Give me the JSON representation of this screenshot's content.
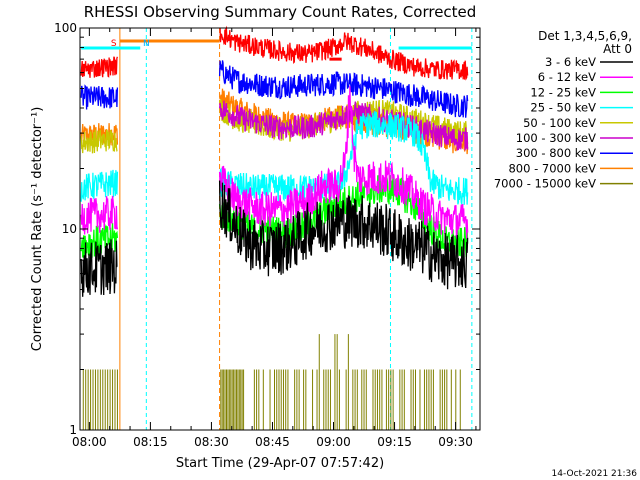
{
  "chart_data": {
    "type": "line",
    "title": "RHESSI Observing Summary Count Rates, Corrected",
    "xlabel": "Start Time (29-Apr-07 07:57:42)",
    "ylabel": "Corrected Count Rate (s⁻¹ detector⁻¹)",
    "yscale": "log",
    "ylim": [
      1,
      100
    ],
    "xlim_minutes": [
      -2.3,
      96
    ],
    "x_ticks": [
      {
        "minutes": 0,
        "label": "08:00"
      },
      {
        "minutes": 15,
        "label": "08:15"
      },
      {
        "minutes": 30,
        "label": "08:30"
      },
      {
        "minutes": 45,
        "label": "08:45"
      },
      {
        "minutes": 60,
        "label": "09:00"
      },
      {
        "minutes": 75,
        "label": "09:15"
      },
      {
        "minutes": 90,
        "label": "09:30"
      }
    ],
    "y_ticks": [
      {
        "value": 1,
        "label": "1"
      },
      {
        "value": 10,
        "label": "10"
      },
      {
        "value": 100,
        "label": "100"
      }
    ],
    "legend_header": [
      "Det 1,3,4,5,6,9,",
      "Att 0"
    ],
    "legend_position": "right",
    "series": [
      {
        "name": "3 - 6 keV",
        "color": "#000000",
        "noise": 0.14,
        "segments": [
          [
            [
              -2,
              6.3
            ],
            [
              7,
              6.5
            ]
          ],
          [
            [
              32,
              14
            ],
            [
              34,
              12
            ],
            [
              38,
              9
            ],
            [
              42,
              8
            ],
            [
              46,
              8
            ],
            [
              50,
              8.5
            ],
            [
              54,
              10
            ],
            [
              58,
              10.5
            ],
            [
              62,
              11
            ],
            [
              66,
              11
            ],
            [
              70,
              10.5
            ],
            [
              74,
              9.5
            ],
            [
              78,
              8.5
            ],
            [
              82,
              8
            ],
            [
              86,
              7
            ],
            [
              90,
              6.8
            ],
            [
              93,
              6.8
            ]
          ]
        ]
      },
      {
        "name": "6 - 12 keV",
        "color": "#ff00ff",
        "noise": 0.09,
        "segments": [
          [
            [
              -2,
              11.5
            ],
            [
              7,
              12
            ]
          ],
          [
            [
              32,
              18
            ],
            [
              36,
              14
            ],
            [
              42,
              12.5
            ],
            [
              48,
              12.5
            ],
            [
              54,
              14
            ],
            [
              57,
              16
            ],
            [
              59,
              16.5
            ],
            [
              61,
              16
            ],
            [
              63,
              22
            ],
            [
              64,
              50
            ],
            [
              65,
              24
            ],
            [
              66,
              18
            ],
            [
              70,
              18
            ],
            [
              74,
              18
            ],
            [
              78,
              16
            ],
            [
              82,
              13
            ],
            [
              86,
              11.5
            ],
            [
              90,
              11
            ],
            [
              93,
              11
            ]
          ]
        ]
      },
      {
        "name": "12 - 25 keV",
        "color": "#00ff00",
        "noise": 0.08,
        "segments": [
          [
            [
              -2,
              8.5
            ],
            [
              7,
              9
            ]
          ],
          [
            [
              32,
              12
            ],
            [
              36,
              11
            ],
            [
              40,
              10
            ],
            [
              44,
              10
            ],
            [
              48,
              9.5
            ],
            [
              52,
              10
            ],
            [
              56,
              11.5
            ],
            [
              60,
              13
            ],
            [
              64,
              14
            ],
            [
              68,
              15
            ],
            [
              72,
              16
            ],
            [
              76,
              15.5
            ],
            [
              80,
              13
            ],
            [
              84,
              10
            ],
            [
              88,
              8.5
            ],
            [
              93,
              8.5
            ]
          ]
        ]
      },
      {
        "name": "25 - 50 keV",
        "color": "#00ffff",
        "noise": 0.07,
        "segments": [
          [
            [
              -2,
              16
            ],
            [
              7,
              17
            ]
          ],
          [
            [
              32,
              17
            ],
            [
              40,
              16
            ],
            [
              48,
              16
            ],
            [
              56,
              16
            ],
            [
              62,
              16.5
            ],
            [
              64,
              22
            ],
            [
              66,
              32
            ],
            [
              68,
              33
            ],
            [
              72,
              33
            ],
            [
              76,
              32
            ],
            [
              80,
              30
            ],
            [
              82,
              25
            ],
            [
              84,
              17
            ],
            [
              88,
              15.5
            ],
            [
              93,
              15.5
            ]
          ]
        ]
      },
      {
        "name": "50 - 100 keV",
        "color": "#c8c800",
        "noise": 0.06,
        "segments": [
          [
            [
              -2,
              27
            ],
            [
              7,
              28
            ]
          ],
          [
            [
              32,
              40
            ],
            [
              36,
              35
            ],
            [
              44,
              32
            ],
            [
              50,
              31
            ],
            [
              56,
              33
            ],
            [
              62,
              36
            ],
            [
              66,
              38
            ],
            [
              70,
              39
            ],
            [
              74,
              38
            ],
            [
              78,
              36
            ],
            [
              82,
              34
            ],
            [
              86,
              32
            ],
            [
              90,
              30.5
            ],
            [
              93,
              30
            ]
          ]
        ]
      },
      {
        "name": "100 - 300 keV",
        "color": "#cc00cc",
        "noise": 0.06,
        "segments": [
          [
            [
              32,
              40
            ],
            [
              38,
              35
            ],
            [
              46,
              32
            ],
            [
              54,
              32
            ],
            [
              60,
              35
            ],
            [
              64,
              38
            ],
            [
              68,
              37
            ],
            [
              72,
              35
            ],
            [
              78,
              33
            ],
            [
              84,
              30
            ],
            [
              90,
              28
            ],
            [
              93,
              28
            ]
          ]
        ]
      },
      {
        "name": "300 - 800 keV",
        "color": "#0000ff",
        "noise": 0.06,
        "segments": [
          [
            [
              -2,
              45
            ],
            [
              7,
              45
            ]
          ],
          [
            [
              32,
              62
            ],
            [
              36,
              55
            ],
            [
              42,
              52
            ],
            [
              48,
              51
            ],
            [
              54,
              52
            ],
            [
              60,
              53
            ],
            [
              66,
              52
            ],
            [
              72,
              50
            ],
            [
              78,
              47
            ],
            [
              84,
              44
            ],
            [
              90,
              41
            ],
            [
              93,
              41
            ]
          ]
        ]
      },
      {
        "name": "800 - 7000 keV",
        "color": "#ff8000",
        "noise": 0.06,
        "segments": [
          [
            [
              -2,
              29
            ],
            [
              7,
              30
            ]
          ],
          [
            [
              32,
              45
            ],
            [
              36,
              40
            ],
            [
              44,
              35
            ],
            [
              50,
              33
            ],
            [
              56,
              34
            ],
            [
              60,
              36
            ],
            [
              64,
              36
            ],
            [
              68,
              34
            ],
            [
              72,
              33
            ],
            [
              78,
              31
            ],
            [
              84,
              29
            ],
            [
              90,
              27
            ],
            [
              93,
              27
            ]
          ]
        ]
      },
      {
        "name": "7000 - 15000 keV",
        "color": "#808000",
        "noise": 0,
        "segments": []
      }
    ],
    "overlays": {
      "red_3_6_keV_rate": [
        [
          [
            -2,
            62
          ],
          [
            7,
            65
          ]
        ],
        [
          [
            32,
            95
          ],
          [
            36,
            85
          ],
          [
            42,
            80
          ],
          [
            48,
            76
          ],
          [
            54,
            74
          ],
          [
            60,
            80
          ],
          [
            63,
            86
          ],
          [
            66,
            82
          ],
          [
            70,
            76
          ],
          [
            74,
            70
          ],
          [
            80,
            64
          ],
          [
            86,
            62
          ],
          [
            93,
            62
          ]
        ]
      ],
      "red_bar_minutes": [
        59,
        62
      ],
      "saa_gaps_minutes": [
        [
          7.5,
          32
        ]
      ],
      "night_markers_minutes": [
        -2.3,
        14,
        74,
        94
      ],
      "cyan_bar_segments_minutes": [
        [
          -2,
          12.5
        ],
        [
          76,
          94
        ]
      ],
      "flag_letters": [
        {
          "minutes": 6,
          "text": "S"
        },
        {
          "minutes": 14,
          "text": "N"
        }
      ]
    },
    "footer_date": "14-Oct-2021 21:36"
  }
}
